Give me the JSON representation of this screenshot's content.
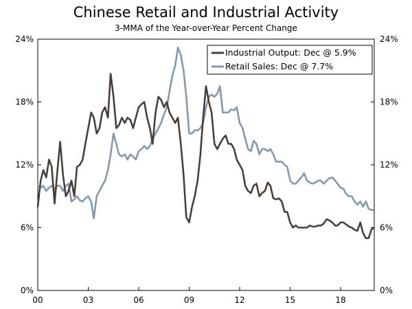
{
  "chart_data": {
    "type": "line",
    "title": "Chinese Retail and Industrial Activity",
    "subtitle": "3-MMA of the Year-over-Year Percent Change",
    "xlabel": "",
    "ylabel": "",
    "x_ticks": [
      "00",
      "03",
      "06",
      "09",
      "12",
      "15",
      "18"
    ],
    "y_ticks": [
      "0%",
      "6%",
      "12%",
      "18%",
      "24%"
    ],
    "y_ticks_right": [
      "0%",
      "6%",
      "12%",
      "18%",
      "24%"
    ],
    "xlim": [
      2000.0,
      2020.0
    ],
    "ylim": [
      0,
      24
    ],
    "grid": false,
    "legend_position": "top-right",
    "series": [
      {
        "name": "Industrial Output: Dec @ 5.9%",
        "color": "#4a3f37",
        "points": [
          [
            2000.0,
            8.0
          ],
          [
            2000.17,
            10.5
          ],
          [
            2000.33,
            11.5
          ],
          [
            2000.5,
            10.8
          ],
          [
            2000.67,
            12.5
          ],
          [
            2000.83,
            11.8
          ],
          [
            2001.0,
            8.3
          ],
          [
            2001.17,
            11.5
          ],
          [
            2001.33,
            14.2
          ],
          [
            2001.5,
            11.0
          ],
          [
            2001.67,
            9.0
          ],
          [
            2001.83,
            9.5
          ],
          [
            2002.0,
            10.5
          ],
          [
            2002.17,
            9.0
          ],
          [
            2002.33,
            11.8
          ],
          [
            2002.5,
            12.0
          ],
          [
            2002.67,
            12.5
          ],
          [
            2002.83,
            14.0
          ],
          [
            2003.0,
            15.5
          ],
          [
            2003.17,
            17.0
          ],
          [
            2003.33,
            16.5
          ],
          [
            2003.5,
            15.0
          ],
          [
            2003.67,
            15.5
          ],
          [
            2003.83,
            17.0
          ],
          [
            2004.0,
            17.5
          ],
          [
            2004.17,
            16.5
          ],
          [
            2004.33,
            20.7
          ],
          [
            2004.5,
            18.5
          ],
          [
            2004.67,
            15.5
          ],
          [
            2004.83,
            15.8
          ],
          [
            2005.0,
            16.5
          ],
          [
            2005.17,
            16.0
          ],
          [
            2005.33,
            16.5
          ],
          [
            2005.5,
            16.3
          ],
          [
            2005.67,
            15.5
          ],
          [
            2005.83,
            16.5
          ],
          [
            2006.0,
            17.5
          ],
          [
            2006.17,
            17.8
          ],
          [
            2006.33,
            18.0
          ],
          [
            2006.5,
            16.5
          ],
          [
            2006.67,
            15.5
          ],
          [
            2006.83,
            14.0
          ],
          [
            2007.0,
            17.0
          ],
          [
            2007.17,
            18.5
          ],
          [
            2007.33,
            18.2
          ],
          [
            2007.5,
            17.5
          ],
          [
            2007.67,
            18.0
          ],
          [
            2007.83,
            17.0
          ],
          [
            2008.0,
            16.5
          ],
          [
            2008.17,
            16.0
          ],
          [
            2008.33,
            16.5
          ],
          [
            2008.5,
            14.0
          ],
          [
            2008.67,
            11.0
          ],
          [
            2008.83,
            7.0
          ],
          [
            2009.0,
            6.5
          ],
          [
            2009.17,
            8.0
          ],
          [
            2009.33,
            9.0
          ],
          [
            2009.5,
            10.5
          ],
          [
            2009.67,
            13.0
          ],
          [
            2009.83,
            16.5
          ],
          [
            2010.0,
            19.5
          ],
          [
            2010.17,
            18.0
          ],
          [
            2010.33,
            17.0
          ],
          [
            2010.5,
            14.0
          ],
          [
            2010.67,
            13.5
          ],
          [
            2010.83,
            14.0
          ],
          [
            2011.0,
            14.5
          ],
          [
            2011.17,
            14.8
          ],
          [
            2011.33,
            14.0
          ],
          [
            2011.5,
            14.0
          ],
          [
            2011.67,
            13.5
          ],
          [
            2011.83,
            12.5
          ],
          [
            2012.0,
            12.0
          ],
          [
            2012.17,
            11.5
          ],
          [
            2012.33,
            10.0
          ],
          [
            2012.5,
            9.5
          ],
          [
            2012.67,
            9.3
          ],
          [
            2012.83,
            10.0
          ],
          [
            2013.0,
            10.2
          ],
          [
            2013.17,
            9.0
          ],
          [
            2013.33,
            9.3
          ],
          [
            2013.5,
            9.5
          ],
          [
            2013.67,
            10.3
          ],
          [
            2013.83,
            10.0
          ],
          [
            2014.0,
            8.8
          ],
          [
            2014.17,
            8.7
          ],
          [
            2014.33,
            8.8
          ],
          [
            2014.5,
            8.5
          ],
          [
            2014.67,
            7.5
          ],
          [
            2014.83,
            7.5
          ],
          [
            2015.0,
            6.5
          ],
          [
            2015.17,
            6.0
          ],
          [
            2015.33,
            6.2
          ],
          [
            2015.5,
            6.0
          ],
          [
            2015.67,
            6.0
          ],
          [
            2015.83,
            6.0
          ],
          [
            2016.0,
            6.0
          ],
          [
            2016.17,
            6.2
          ],
          [
            2016.33,
            6.1
          ],
          [
            2016.5,
            6.1
          ],
          [
            2016.67,
            6.2
          ],
          [
            2016.83,
            6.2
          ],
          [
            2017.0,
            6.4
          ],
          [
            2017.17,
            6.8
          ],
          [
            2017.33,
            6.7
          ],
          [
            2017.5,
            6.5
          ],
          [
            2017.67,
            6.2
          ],
          [
            2017.83,
            6.2
          ],
          [
            2018.0,
            6.5
          ],
          [
            2018.17,
            6.5
          ],
          [
            2018.33,
            6.3
          ],
          [
            2018.5,
            6.1
          ],
          [
            2018.67,
            6.0
          ],
          [
            2018.83,
            5.8
          ],
          [
            2019.0,
            5.7
          ],
          [
            2019.17,
            6.5
          ],
          [
            2019.33,
            5.5
          ],
          [
            2019.5,
            5.0
          ],
          [
            2019.67,
            5.0
          ],
          [
            2019.83,
            5.8
          ],
          [
            2019.92,
            5.9
          ]
        ]
      },
      {
        "name": "Retail Sales: Dec @ 7.7%",
        "color": "#7f9ab0",
        "points": [
          [
            2000.0,
            10.0
          ],
          [
            2000.17,
            9.8
          ],
          [
            2000.33,
            10.0
          ],
          [
            2000.5,
            9.5
          ],
          [
            2000.67,
            9.8
          ],
          [
            2000.83,
            10.0
          ],
          [
            2001.0,
            9.7
          ],
          [
            2001.17,
            10.0
          ],
          [
            2001.33,
            10.0
          ],
          [
            2001.5,
            9.5
          ],
          [
            2001.67,
            10.0
          ],
          [
            2001.83,
            10.2
          ],
          [
            2002.0,
            8.5
          ],
          [
            2002.17,
            8.7
          ],
          [
            2002.33,
            9.0
          ],
          [
            2002.5,
            8.6
          ],
          [
            2002.67,
            8.5
          ],
          [
            2002.83,
            8.8
          ],
          [
            2003.0,
            9.0
          ],
          [
            2003.17,
            8.5
          ],
          [
            2003.33,
            6.9
          ],
          [
            2003.5,
            9.0
          ],
          [
            2003.67,
            9.5
          ],
          [
            2003.83,
            10.0
          ],
          [
            2004.0,
            10.5
          ],
          [
            2004.17,
            11.5
          ],
          [
            2004.33,
            13.0
          ],
          [
            2004.5,
            15.0
          ],
          [
            2004.67,
            14.0
          ],
          [
            2004.83,
            13.0
          ],
          [
            2005.0,
            12.8
          ],
          [
            2005.17,
            13.0
          ],
          [
            2005.33,
            12.5
          ],
          [
            2005.5,
            13.0
          ],
          [
            2005.67,
            12.8
          ],
          [
            2005.83,
            12.5
          ],
          [
            2006.0,
            13.3
          ],
          [
            2006.17,
            13.5
          ],
          [
            2006.33,
            13.8
          ],
          [
            2006.5,
            13.5
          ],
          [
            2006.67,
            13.8
          ],
          [
            2006.83,
            14.5
          ],
          [
            2007.0,
            15.0
          ],
          [
            2007.17,
            15.5
          ],
          [
            2007.33,
            16.0
          ],
          [
            2007.5,
            16.8
          ],
          [
            2007.67,
            17.5
          ],
          [
            2007.83,
            19.0
          ],
          [
            2008.0,
            20.5
          ],
          [
            2008.17,
            21.5
          ],
          [
            2008.33,
            23.2
          ],
          [
            2008.5,
            22.5
          ],
          [
            2008.67,
            21.0
          ],
          [
            2008.83,
            18.5
          ],
          [
            2009.0,
            15.0
          ],
          [
            2009.17,
            15.0
          ],
          [
            2009.33,
            15.3
          ],
          [
            2009.5,
            15.3
          ],
          [
            2009.67,
            15.5
          ],
          [
            2009.83,
            16.0
          ],
          [
            2010.0,
            17.5
          ],
          [
            2010.17,
            18.5
          ],
          [
            2010.33,
            18.7
          ],
          [
            2010.5,
            18.5
          ],
          [
            2010.67,
            18.8
          ],
          [
            2010.83,
            19.5
          ],
          [
            2011.0,
            17.0
          ],
          [
            2011.17,
            17.0
          ],
          [
            2011.33,
            17.0
          ],
          [
            2011.5,
            17.3
          ],
          [
            2011.67,
            17.2
          ],
          [
            2011.83,
            17.5
          ],
          [
            2012.0,
            16.0
          ],
          [
            2012.17,
            15.5
          ],
          [
            2012.33,
            14.5
          ],
          [
            2012.5,
            13.5
          ],
          [
            2012.67,
            13.3
          ],
          [
            2012.83,
            14.3
          ],
          [
            2013.0,
            14.0
          ],
          [
            2013.17,
            13.0
          ],
          [
            2013.33,
            13.5
          ],
          [
            2013.5,
            13.5
          ],
          [
            2013.67,
            13.3
          ],
          [
            2013.83,
            13.5
          ],
          [
            2014.0,
            13.0
          ],
          [
            2014.17,
            12.3
          ],
          [
            2014.33,
            12.3
          ],
          [
            2014.5,
            12.3
          ],
          [
            2014.67,
            12.0
          ],
          [
            2014.83,
            11.8
          ],
          [
            2015.0,
            10.5
          ],
          [
            2015.17,
            10.2
          ],
          [
            2015.33,
            10.2
          ],
          [
            2015.5,
            10.5
          ],
          [
            2015.67,
            10.8
          ],
          [
            2015.83,
            11.2
          ],
          [
            2016.0,
            10.5
          ],
          [
            2016.17,
            10.3
          ],
          [
            2016.33,
            10.2
          ],
          [
            2016.5,
            10.3
          ],
          [
            2016.67,
            10.5
          ],
          [
            2016.83,
            10.5
          ],
          [
            2017.0,
            10.2
          ],
          [
            2017.17,
            10.5
          ],
          [
            2017.33,
            10.7
          ],
          [
            2017.5,
            10.8
          ],
          [
            2017.67,
            10.5
          ],
          [
            2017.83,
            10.2
          ],
          [
            2018.0,
            9.8
          ],
          [
            2018.17,
            9.7
          ],
          [
            2018.33,
            9.2
          ],
          [
            2018.5,
            9.0
          ],
          [
            2018.67,
            9.0
          ],
          [
            2018.83,
            8.5
          ],
          [
            2019.0,
            8.2
          ],
          [
            2019.17,
            8.5
          ],
          [
            2019.33,
            8.0
          ],
          [
            2019.5,
            8.5
          ],
          [
            2019.67,
            7.8
          ],
          [
            2019.83,
            7.7
          ],
          [
            2019.92,
            7.7
          ]
        ]
      }
    ]
  }
}
